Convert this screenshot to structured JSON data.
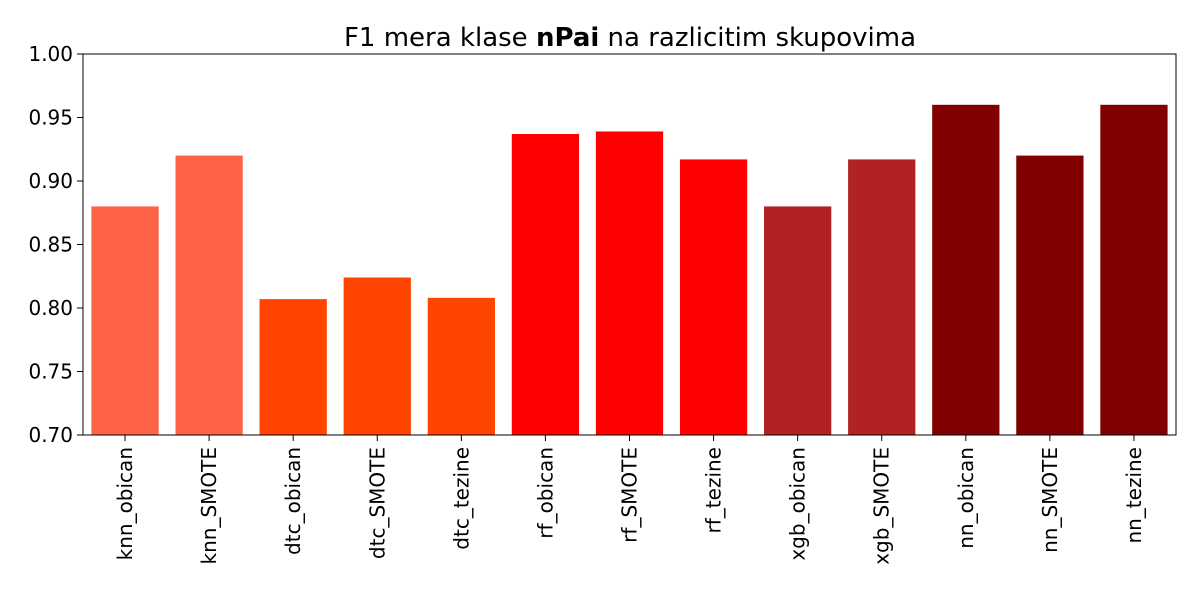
{
  "chart_data": {
    "type": "bar",
    "title_prefix": "F1 mera klase ",
    "title_bold": "nPai",
    "title_suffix": " na razlicitim skupovima",
    "xlabel": "",
    "ylabel": "",
    "ylim": [
      0.7,
      1.0
    ],
    "yticks": [
      0.7,
      0.75,
      0.8,
      0.85,
      0.9,
      0.95,
      1.0
    ],
    "ytick_labels": [
      "0.70",
      "0.75",
      "0.80",
      "0.85",
      "0.90",
      "0.95",
      "1.00"
    ],
    "categories": [
      "knn_obican",
      "knn_SMOTE",
      "dtc_obican",
      "dtc_SMOTE",
      "dtc_tezine",
      "rf_obican",
      "rf_SMOTE",
      "rf_tezine",
      "xgb_obican",
      "xgb_SMOTE",
      "nn_obican",
      "nn_SMOTE",
      "nn_tezine"
    ],
    "values": [
      0.88,
      0.92,
      0.807,
      0.824,
      0.808,
      0.937,
      0.939,
      0.917,
      0.88,
      0.917,
      0.96,
      0.92,
      0.96
    ],
    "colors": [
      "#ff6347",
      "#ff6347",
      "#ff4500",
      "#ff4500",
      "#ff4500",
      "#ff0000",
      "#ff0000",
      "#ff0000",
      "#b22222",
      "#b22222",
      "#800000",
      "#800000",
      "#800000"
    ],
    "grid": false,
    "legend": "none"
  }
}
